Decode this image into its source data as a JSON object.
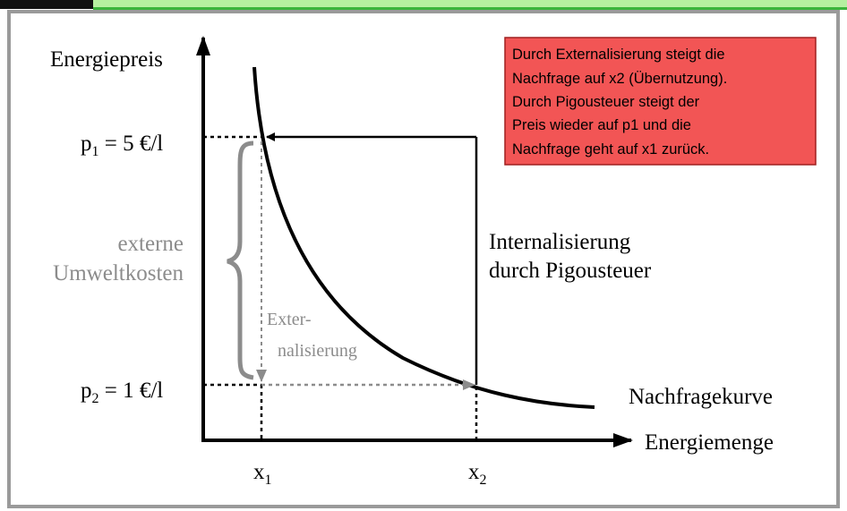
{
  "axes": {
    "y_label": "Energiepreis",
    "x_label": "Energiemenge"
  },
  "prices": [
    {
      "base": "p",
      "sub": "1",
      "rest": " = 5 €/l"
    },
    {
      "base": "p",
      "sub": "2",
      "rest": " = 1 €/l"
    }
  ],
  "quantities": [
    {
      "base": "x",
      "sub": "1"
    },
    {
      "base": "x",
      "sub": "2"
    }
  ],
  "labels": {
    "external_costs": [
      "externe",
      "Umweltkosten"
    ],
    "externalization": [
      "Exter-",
      "nalisierung"
    ],
    "internalization": [
      "Internalisierung",
      "durch Pigousteuer"
    ],
    "demand_curve": "Nachfragekurve"
  },
  "note": [
    "Durch Externalisierung steigt die",
    "Nachfrage auf x2 (Übernutzung).",
    "Durch Pigousteuer steigt der",
    "Preis wieder auf p1 und die",
    "Nachfrage geht auf x1 zurück."
  ]
}
